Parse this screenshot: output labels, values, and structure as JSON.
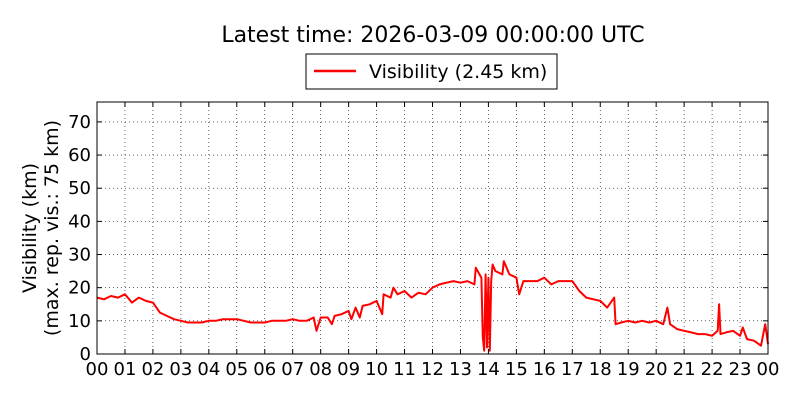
{
  "chart_data": {
    "type": "line",
    "title": "Latest time: 2026-03-09 00:00:00 UTC",
    "ylabel_line1": "Visibility (km)",
    "ylabel_line2": "(max. rep. vis.: 75 km)",
    "xlabel": "",
    "xlim": [
      0,
      24
    ],
    "ylim": [
      0,
      76
    ],
    "x_ticks": [
      0,
      1,
      2,
      3,
      4,
      5,
      6,
      7,
      8,
      9,
      10,
      11,
      12,
      13,
      14,
      15,
      16,
      17,
      18,
      19,
      20,
      21,
      22,
      23,
      24
    ],
    "x_tick_labels": [
      "00",
      "01",
      "02",
      "03",
      "04",
      "05",
      "06",
      "07",
      "08",
      "09",
      "10",
      "11",
      "12",
      "13",
      "14",
      "15",
      "16",
      "17",
      "18",
      "19",
      "20",
      "21",
      "22",
      "23",
      "00"
    ],
    "y_ticks": [
      0,
      10,
      20,
      30,
      40,
      50,
      60,
      70
    ],
    "y_tick_labels": [
      "0",
      "10",
      "20",
      "30",
      "40",
      "50",
      "60",
      "70"
    ],
    "grid": true,
    "legend_position": "top-center",
    "series": [
      {
        "name": "Visibility (2.45 km)",
        "color": "#ff0000",
        "x": [
          0,
          0.25,
          0.5,
          0.75,
          1,
          1.1,
          1.25,
          1.5,
          1.75,
          2,
          2.25,
          2.5,
          2.75,
          3,
          3.25,
          3.5,
          3.75,
          4,
          4.25,
          4.5,
          4.75,
          5,
          5.25,
          5.5,
          5.75,
          6,
          6.25,
          6.5,
          6.75,
          7,
          7.25,
          7.5,
          7.75,
          7.85,
          8,
          8.25,
          8.4,
          8.5,
          8.75,
          9,
          9.1,
          9.25,
          9.4,
          9.5,
          9.75,
          10,
          10.2,
          10.25,
          10.5,
          10.6,
          10.75,
          11,
          11.25,
          11.5,
          11.75,
          12,
          12.25,
          12.5,
          12.75,
          13,
          13.25,
          13.5,
          13.55,
          13.75,
          13.8,
          13.85,
          13.9,
          13.95,
          14,
          14.05,
          14.1,
          14.15,
          14.25,
          14.5,
          14.55,
          14.75,
          15,
          15.1,
          15.25,
          15.5,
          15.75,
          16,
          16.25,
          16.5,
          16.75,
          17,
          17.25,
          17.5,
          17.75,
          18,
          18.25,
          18.5,
          18.55,
          18.75,
          19,
          19.25,
          19.5,
          19.75,
          20,
          20.25,
          20.4,
          20.5,
          20.75,
          21,
          21.25,
          21.5,
          21.75,
          22,
          22.2,
          22.25,
          22.3,
          22.5,
          22.75,
          23,
          23.1,
          23.25,
          23.5,
          23.75,
          23.9,
          24
        ],
        "y": [
          17,
          16.5,
          17.5,
          17,
          18,
          17,
          15.5,
          17,
          16,
          15.5,
          12.5,
          11.5,
          10.5,
          10,
          9.5,
          9.5,
          9.5,
          10,
          10,
          10.5,
          10.5,
          10.5,
          10,
          9.5,
          9.5,
          9.5,
          10,
          10,
          10,
          10.5,
          10,
          10,
          11,
          7,
          11,
          11,
          9,
          11.5,
          12,
          13,
          10.5,
          14,
          11,
          14.5,
          15,
          16,
          12,
          18,
          17,
          20,
          18,
          19,
          17,
          18.5,
          18,
          20,
          21,
          21.5,
          22,
          21.5,
          22,
          21,
          26,
          23,
          5,
          1,
          24,
          2,
          23,
          1,
          22,
          27,
          25,
          24,
          28,
          24,
          23,
          18,
          22,
          22,
          22,
          23,
          21,
          22,
          22,
          22,
          19,
          17,
          16.5,
          16,
          14,
          17,
          9,
          9.5,
          10,
          9.5,
          10,
          9.5,
          10,
          9,
          14,
          9,
          7.5,
          7,
          6.5,
          6,
          6,
          5.5,
          7,
          15,
          6,
          6.5,
          7,
          5.5,
          8,
          4.5,
          4,
          2.5,
          9,
          3
        ]
      }
    ]
  }
}
